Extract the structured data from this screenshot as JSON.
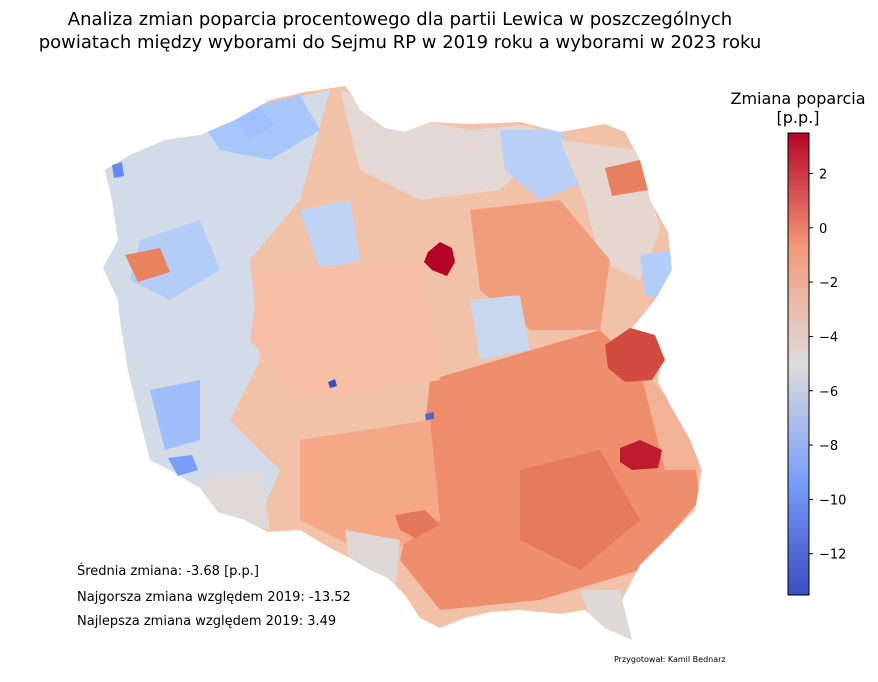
{
  "title_line1": "Analiza zmian poparcia procentowego dla partii Lewica w poszczególnych",
  "title_line2": "powiatach między wyborami do Sejmu RP w 2019 roku a wyborami w 2023 roku",
  "colorbar": {
    "title_line1": "Zmiana poparcia",
    "title_line2": "[p.p.]",
    "ticks": [
      2,
      0,
      -2,
      -4,
      -6,
      -8,
      -10,
      -12
    ],
    "min": -13.52,
    "max": 3.49,
    "colormap": "coolwarm"
  },
  "stats": {
    "mean": "Średnia zmiana: -3.68 [p.p.]",
    "worst": "Najgorsza zmiana względem 2019: -13.52",
    "best": "Najlepsza zmiana względem 2019: 3.49"
  },
  "credit": "Przygotował: Kamil Bednarz",
  "colors": {
    "max_red": "#b40426",
    "dark_red": "#d0473d",
    "orange": "#e9785d",
    "salmon": "#f4987a",
    "light_salmon": "#f5c0a6",
    "neutral": "#dcdddd",
    "light_blue": "#c5d6f2",
    "blue": "#9ebeff",
    "dark_blue": "#3b4cc0"
  }
}
